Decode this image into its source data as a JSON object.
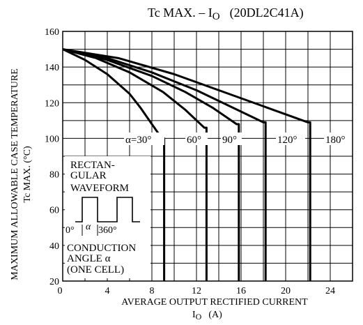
{
  "chart_data": {
    "type": "line",
    "title": "Tc MAX. – I",
    "title_subscript": "O",
    "title_suffix": "(20DL2C41A)",
    "xlabel": "AVERAGE OUTPUT RECTIFIED CURRENT",
    "xlabel_unit_main": "I",
    "xlabel_unit_sub": "O",
    "xlabel_unit_tail": "(A)",
    "ylabel_line1": "MAXIMUM ALLOWABLE CASE TEMPERATURE",
    "ylabel_line2": "Tc MAX. (°C)",
    "xlim": [
      0,
      26
    ],
    "ylim": [
      20,
      160
    ],
    "x_ticks": [
      0,
      4,
      8,
      12,
      16,
      20,
      24
    ],
    "y_ticks": [
      20,
      40,
      60,
      80,
      100,
      120,
      140,
      160
    ],
    "x_grid_step": 2,
    "y_grid_step": 10,
    "grid": true,
    "series": [
      {
        "name": "α=30°",
        "x": [
          0,
          2,
          4,
          6,
          7,
          8,
          8.9,
          9.1,
          9.1
        ],
        "y": [
          150,
          144,
          136,
          125,
          117,
          108,
          100,
          100,
          20
        ]
      },
      {
        "name": "60°",
        "x": [
          0,
          3,
          6,
          9,
          11,
          12.7,
          12.9,
          12.9
        ],
        "y": [
          150,
          145,
          137,
          126,
          116,
          106,
          106,
          20
        ]
      },
      {
        "name": "90°",
        "x": [
          0,
          4,
          8,
          11,
          13.5,
          15.6,
          15.8,
          15.8
        ],
        "y": [
          150,
          144,
          135,
          126,
          117,
          108,
          108,
          20
        ]
      },
      {
        "name": "120°",
        "x": [
          0,
          4,
          8,
          12,
          15,
          18.0,
          18.2,
          18.2
        ],
        "y": [
          150,
          145,
          137,
          127,
          118,
          109,
          109,
          20
        ]
      },
      {
        "name": "180°",
        "x": [
          0,
          5,
          10,
          14,
          18,
          22.0,
          22.2,
          22.2
        ],
        "y": [
          150,
          145,
          136,
          127,
          118,
          109,
          109,
          20
        ]
      }
    ],
    "inset": {
      "line1": "RECTAN-",
      "line2": "GULAR",
      "line3": "WAVEFORM",
      "label_left": "0°",
      "label_alpha": "α",
      "label_right": "360°",
      "line4": "CONDUCTION",
      "line5": "ANGLE α",
      "line6": "(ONE CELL)"
    }
  }
}
